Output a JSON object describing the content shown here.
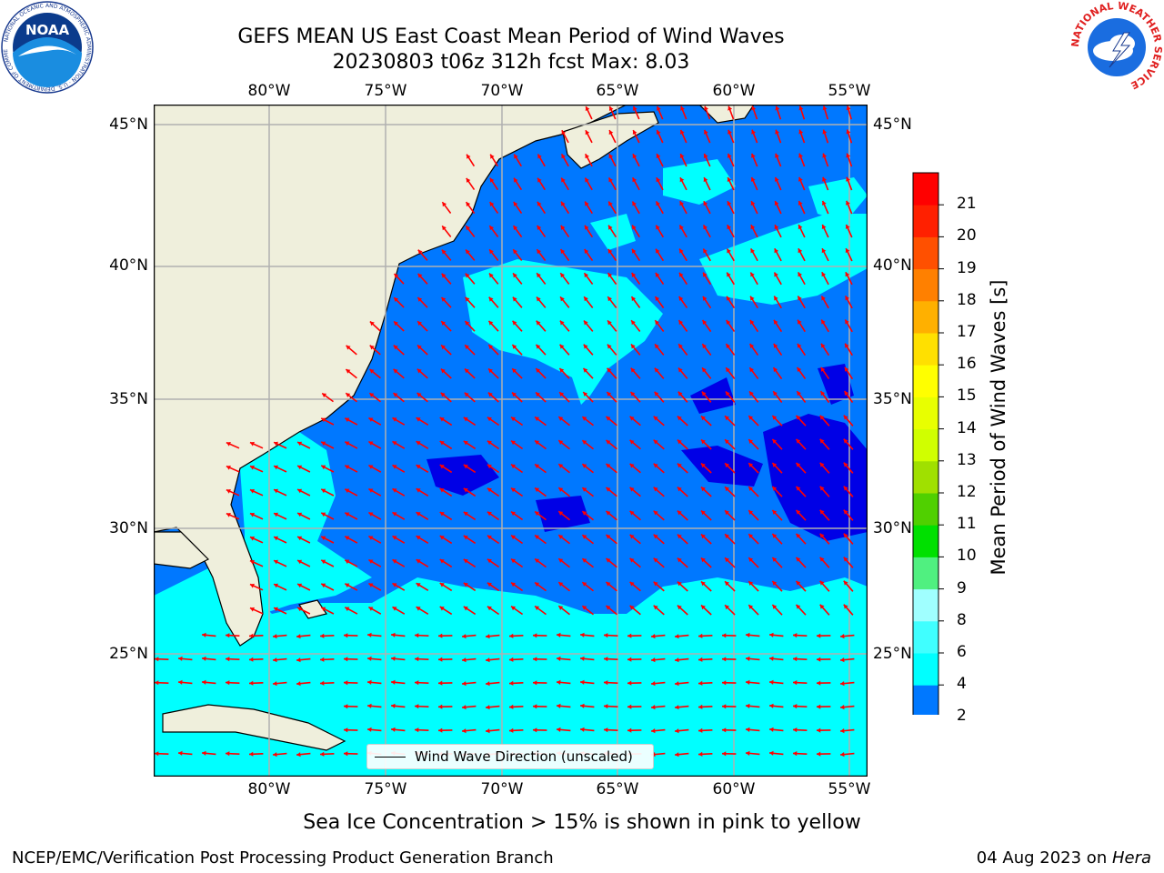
{
  "header": {
    "title_line1": "GEFS MEAN US East Coast Mean Period of Wind Waves",
    "title_line2": "20230803 t06z 312h fcst   Max: 8.03"
  },
  "map": {
    "lon_ticks": [
      "80°W",
      "75°W",
      "70°W",
      "65°W",
      "60°W",
      "55°W"
    ],
    "lat_ticks": [
      "45°N",
      "40°N",
      "35°N",
      "30°N",
      "25°N"
    ],
    "colors": {
      "land": "#efefdc",
      "coast": "#000000",
      "grid": "#b0b0b0",
      "arrow": "#ff0000",
      "bin_2_4": "#0078ff",
      "bin_4_6": "#00ffff",
      "bin_6_8": "#40ffff",
      "below_2": "#0000e6"
    },
    "arrow_style": "red-wind-wave-arrows"
  },
  "legend": {
    "label": "Wind Wave Direction (unscaled)"
  },
  "colorbar": {
    "label": "Mean Period of Wind Waves [s]",
    "ticks": [
      "2",
      "4",
      "6",
      "8",
      "9",
      "10",
      "11",
      "12",
      "13",
      "14",
      "15",
      "16",
      "17",
      "18",
      "19",
      "20",
      "21"
    ],
    "colors": [
      "#0078ff",
      "#00ffff",
      "#40ffff",
      "#a0ffff",
      "#50f080",
      "#00e000",
      "#50d000",
      "#a0e000",
      "#d0ff00",
      "#e8ff00",
      "#ffff00",
      "#ffe000",
      "#ffb000",
      "#ff8000",
      "#ff5000",
      "#ff2000",
      "#ff0000"
    ],
    "under_color": "#0000e6"
  },
  "footer": {
    "note": "Sea Ice Concentration > 15% is shown in pink to yellow",
    "left": "NCEP/EMC/Verification Post Processing Product Generation Branch",
    "right_prefix": "04 Aug 2023 on ",
    "right_machine": "Hera"
  },
  "logos": {
    "noaa_text": "NOAA",
    "noaa_ring": "NATIONAL OCEANIC AND ATMOSPHERIC ADMINISTRATION · U.S. DEPARTMENT OF COMMERCE",
    "nws_ring": "NATIONAL WEATHER SERVICE"
  }
}
